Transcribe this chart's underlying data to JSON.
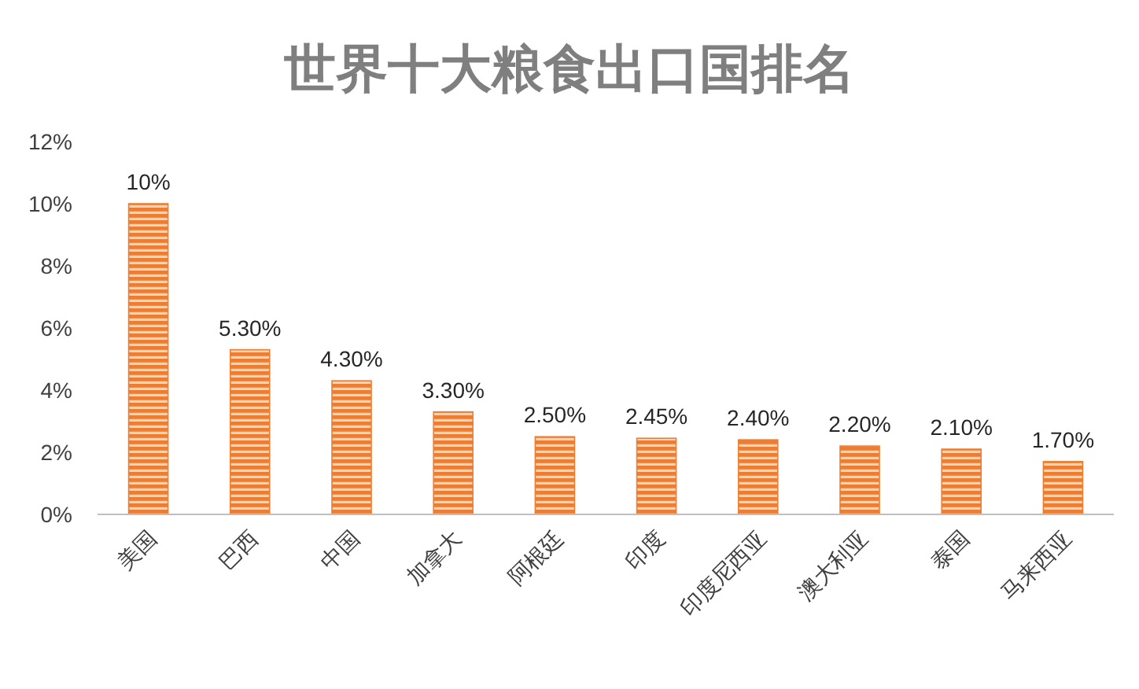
{
  "chart_data": {
    "type": "bar",
    "title": "世界十大粮食出口国排名",
    "categories": [
      "美国",
      "巴西",
      "中国",
      "加拿大",
      "阿根廷",
      "印度",
      "印度尼西亚",
      "澳大利亚",
      "泰国",
      "马来西亚"
    ],
    "values": [
      10,
      5.3,
      4.3,
      3.3,
      2.5,
      2.45,
      2.4,
      2.2,
      2.1,
      1.7
    ],
    "value_labels": [
      "10%",
      "5.30%",
      "4.30%",
      "3.30%",
      "2.50%",
      "2.45%",
      "2.40%",
      "2.20%",
      "2.10%",
      "1.70%"
    ],
    "color": "#ed7d31",
    "ylim": [
      0,
      12
    ],
    "yticks": [
      {
        "value": 0,
        "label": "0%"
      },
      {
        "value": 2,
        "label": "2%"
      },
      {
        "value": 4,
        "label": "4%"
      },
      {
        "value": 6,
        "label": "6%"
      },
      {
        "value": 8,
        "label": "8%"
      },
      {
        "value": 10,
        "label": "10%"
      },
      {
        "value": 12,
        "label": "12%"
      }
    ],
    "grid": false
  }
}
